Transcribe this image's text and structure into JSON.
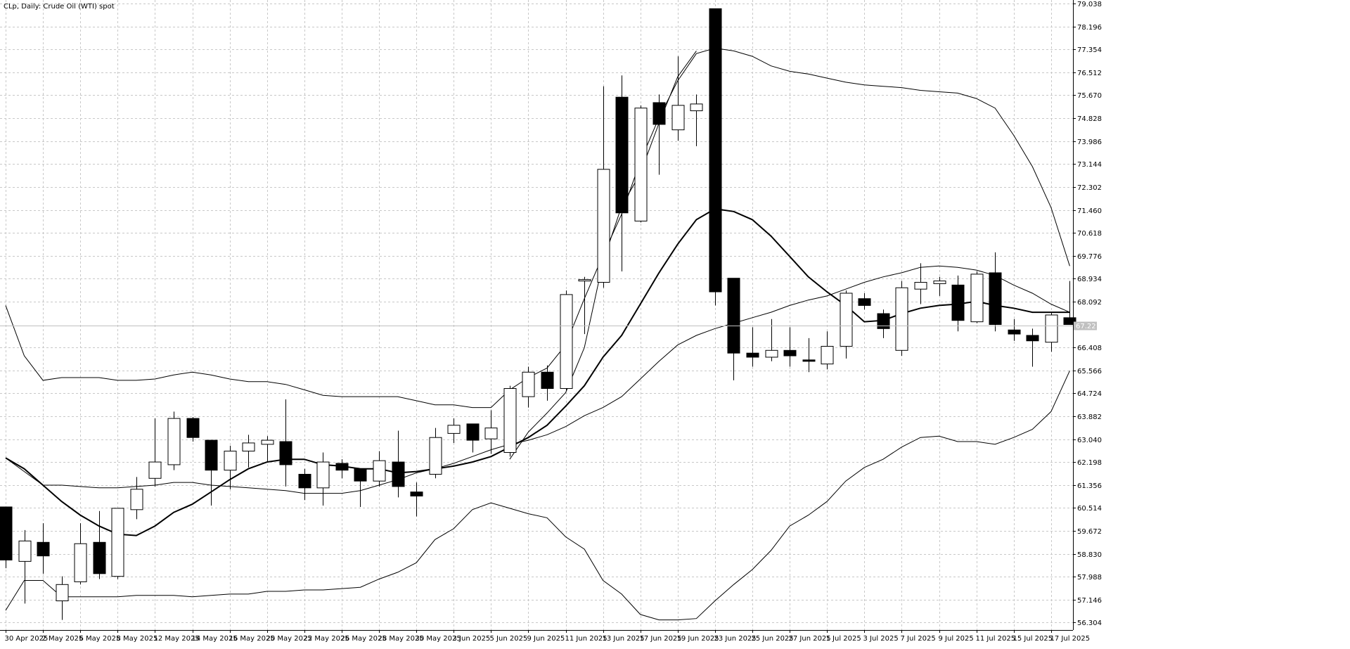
{
  "header": {
    "symbol_title": "CLp, Daily:  Crude Oil (WTI) spot"
  },
  "price_tag": {
    "label": "67.22"
  },
  "colors": {
    "background": "#ffffff",
    "grid": "#c8c8c8",
    "bull_body": "#ffffff",
    "bear_body": "#000000",
    "band_line": "#000000",
    "price_tag_bg": "#c0c0c0"
  },
  "chart_data": {
    "type": "candlestick",
    "title": "CLp, Daily:  Crude Oil (WTI) spot",
    "ylim": [
      55.9,
      79.04
    ],
    "y_ticks": [
      79.038,
      78.196,
      77.354,
      76.512,
      75.67,
      74.828,
      73.986,
      73.144,
      72.302,
      71.46,
      70.618,
      69.776,
      68.934,
      68.092,
      66.408,
      65.566,
      64.724,
      63.882,
      63.04,
      62.198,
      61.356,
      60.514,
      59.672,
      58.83,
      57.988,
      57.146,
      56.304
    ],
    "y_tick_labels": [
      "79.038",
      "78.196",
      "77.354",
      "76.512",
      "75.670",
      "74.828",
      "73.986",
      "73.144",
      "72.302",
      "71.460",
      "70.618",
      "69.776",
      "68.934",
      "68.092",
      "66.408",
      "65.566",
      "64.724",
      "63.882",
      "63.040",
      "62.198",
      "61.356",
      "60.514",
      "59.672",
      "58.830",
      "57.988",
      "57.146",
      "56.304"
    ],
    "x_tick_labels": [
      {
        "i": 0,
        "label": "30 Apr 2025"
      },
      {
        "i": 2,
        "label": "2 May 2025"
      },
      {
        "i": 4,
        "label": "6 May 2025"
      },
      {
        "i": 6,
        "label": "8 May 2025"
      },
      {
        "i": 8,
        "label": "12 May 2025"
      },
      {
        "i": 10,
        "label": "14 May 2025"
      },
      {
        "i": 12,
        "label": "16 May 2025"
      },
      {
        "i": 14,
        "label": "20 May 2025"
      },
      {
        "i": 16,
        "label": "22 May 2025"
      },
      {
        "i": 18,
        "label": "26 May 2025"
      },
      {
        "i": 20,
        "label": "28 May 2025"
      },
      {
        "i": 22,
        "label": "30 May 2025"
      },
      {
        "i": 24,
        "label": "3 Jun 2025"
      },
      {
        "i": 26,
        "label": "5 Jun 2025"
      },
      {
        "i": 28,
        "label": "9 Jun 2025"
      },
      {
        "i": 30,
        "label": "11 Jun 2025"
      },
      {
        "i": 32,
        "label": "13 Jun 2025"
      },
      {
        "i": 34,
        "label": "17 Jun 2025"
      },
      {
        "i": 36,
        "label": "19 Jun 2025"
      },
      {
        "i": 38,
        "label": "23 Jun 2025"
      },
      {
        "i": 40,
        "label": "25 Jun 2025"
      },
      {
        "i": 42,
        "label": "27 Jun 2025"
      },
      {
        "i": 44,
        "label": "1 Jul 2025"
      },
      {
        "i": 46,
        "label": "3 Jul 2025"
      },
      {
        "i": 48,
        "label": "7 Jul 2025"
      },
      {
        "i": 50,
        "label": "9 Jul 2025"
      },
      {
        "i": 52,
        "label": "11 Jul 2025"
      },
      {
        "i": 54,
        "label": "15 Jul 2025"
      },
      {
        "i": 56,
        "label": "17 Jul 2025"
      }
    ],
    "ohlc": [
      {
        "o": 60.55,
        "h": 60.55,
        "l": 58.3,
        "c": 58.6
      },
      {
        "o": 58.55,
        "h": 59.7,
        "l": 57.0,
        "c": 59.3
      },
      {
        "o": 59.25,
        "h": 59.95,
        "l": 58.1,
        "c": 58.75
      },
      {
        "o": 57.1,
        "h": 58.0,
        "l": 56.4,
        "c": 57.7
      },
      {
        "o": 57.8,
        "h": 59.95,
        "l": 57.7,
        "c": 59.2
      },
      {
        "o": 59.25,
        "h": 60.4,
        "l": 57.9,
        "c": 58.1
      },
      {
        "o": 58.0,
        "h": 60.5,
        "l": 57.9,
        "c": 60.5
      },
      {
        "o": 60.45,
        "h": 61.65,
        "l": 60.1,
        "c": 61.2
      },
      {
        "o": 61.6,
        "h": 63.8,
        "l": 61.3,
        "c": 62.2
      },
      {
        "o": 62.1,
        "h": 64.05,
        "l": 61.9,
        "c": 63.8
      },
      {
        "o": 63.8,
        "h": 63.85,
        "l": 62.95,
        "c": 63.1
      },
      {
        "o": 63.0,
        "h": 63.0,
        "l": 60.6,
        "c": 61.9
      },
      {
        "o": 61.9,
        "h": 62.8,
        "l": 61.2,
        "c": 62.6
      },
      {
        "o": 62.6,
        "h": 63.2,
        "l": 62.0,
        "c": 62.9
      },
      {
        "o": 62.85,
        "h": 63.15,
        "l": 62.2,
        "c": 63.0
      },
      {
        "o": 62.95,
        "h": 64.5,
        "l": 61.3,
        "c": 62.1
      },
      {
        "o": 61.75,
        "h": 61.95,
        "l": 60.8,
        "c": 61.25
      },
      {
        "o": 61.25,
        "h": 62.55,
        "l": 60.6,
        "c": 62.2
      },
      {
        "o": 62.15,
        "h": 62.3,
        "l": 61.6,
        "c": 61.9
      },
      {
        "o": 61.95,
        "h": 61.95,
        "l": 60.55,
        "c": 61.5
      },
      {
        "o": 61.5,
        "h": 62.6,
        "l": 61.3,
        "c": 62.25
      },
      {
        "o": 62.2,
        "h": 63.35,
        "l": 60.9,
        "c": 61.3
      },
      {
        "o": 61.1,
        "h": 61.45,
        "l": 60.2,
        "c": 60.95
      },
      {
        "o": 61.75,
        "h": 63.45,
        "l": 61.6,
        "c": 63.1
      },
      {
        "o": 63.25,
        "h": 63.8,
        "l": 62.9,
        "c": 63.55
      },
      {
        "o": 63.6,
        "h": 63.6,
        "l": 62.55,
        "c": 63.0
      },
      {
        "o": 63.05,
        "h": 64.1,
        "l": 62.5,
        "c": 63.45
      },
      {
        "o": 62.55,
        "h": 65.0,
        "l": 62.4,
        "c": 64.9
      },
      {
        "o": 64.6,
        "h": 65.7,
        "l": 64.2,
        "c": 65.5
      },
      {
        "o": 65.5,
        "h": 65.75,
        "l": 64.45,
        "c": 64.9
      },
      {
        "o": 64.9,
        "h": 68.5,
        "l": 64.8,
        "c": 68.35
      },
      {
        "o": 68.9,
        "h": 69.0,
        "l": 66.9,
        "c": 68.9
      },
      {
        "o": 68.8,
        "h": 76.0,
        "l": 68.6,
        "c": 72.95
      },
      {
        "o": 75.6,
        "h": 76.4,
        "l": 69.2,
        "c": 71.35
      },
      {
        "o": 71.05,
        "h": 75.3,
        "l": 71.0,
        "c": 75.2
      },
      {
        "o": 75.4,
        "h": 75.7,
        "l": 72.75,
        "c": 74.6
      },
      {
        "o": 74.4,
        "h": 77.1,
        "l": 74.0,
        "c": 75.3
      },
      {
        "o": 75.1,
        "h": 75.7,
        "l": 73.8,
        "c": 75.35
      },
      {
        "o": 78.85,
        "h": 78.85,
        "l": 67.95,
        "c": 68.45
      },
      {
        "o": 68.95,
        "h": 68.95,
        "l": 65.2,
        "c": 66.2
      },
      {
        "o": 66.2,
        "h": 67.15,
        "l": 65.7,
        "c": 66.05
      },
      {
        "o": 66.05,
        "h": 67.45,
        "l": 65.9,
        "c": 66.3
      },
      {
        "o": 66.3,
        "h": 67.15,
        "l": 65.7,
        "c": 66.1
      },
      {
        "o": 65.95,
        "h": 66.75,
        "l": 65.5,
        "c": 65.9
      },
      {
        "o": 65.8,
        "h": 67.0,
        "l": 65.6,
        "c": 66.45
      },
      {
        "o": 66.45,
        "h": 68.5,
        "l": 66.0,
        "c": 68.4
      },
      {
        "o": 68.2,
        "h": 68.4,
        "l": 67.8,
        "c": 67.95
      },
      {
        "o": 67.65,
        "h": 67.8,
        "l": 66.75,
        "c": 67.1
      },
      {
        "o": 66.3,
        "h": 68.85,
        "l": 66.1,
        "c": 68.6
      },
      {
        "o": 68.55,
        "h": 69.5,
        "l": 68.0,
        "c": 68.8
      },
      {
        "o": 68.75,
        "h": 69.0,
        "l": 68.3,
        "c": 68.85
      },
      {
        "o": 68.7,
        "h": 69.05,
        "l": 67.0,
        "c": 67.4
      },
      {
        "o": 67.35,
        "h": 69.2,
        "l": 67.3,
        "c": 69.1
      },
      {
        "o": 69.15,
        "h": 69.9,
        "l": 67.0,
        "c": 67.25
      },
      {
        "o": 67.05,
        "h": 67.45,
        "l": 66.65,
        "c": 66.9
      },
      {
        "o": 66.85,
        "h": 67.1,
        "l": 65.7,
        "c": 66.65
      },
      {
        "o": 66.6,
        "h": 67.7,
        "l": 66.25,
        "c": 67.6
      },
      {
        "o": 67.5,
        "h": 68.85,
        "l": 67.25,
        "c": 67.25
      }
    ],
    "ma_middle": [
      62.35,
      61.95,
      61.35,
      60.75,
      60.25,
      59.85,
      59.55,
      59.5,
      59.85,
      60.35,
      60.65,
      61.1,
      61.55,
      61.95,
      62.2,
      62.3,
      62.3,
      62.1,
      62.05,
      61.95,
      61.95,
      61.8,
      61.85,
      61.95,
      62.05,
      62.2,
      62.4,
      62.75,
      63.1,
      63.55,
      64.25,
      65.0,
      66.05,
      66.85,
      68.0,
      69.15,
      70.2,
      71.1,
      71.5,
      71.4,
      71.1,
      70.5,
      69.75,
      69.0,
      68.45,
      67.95,
      67.35,
      67.4,
      67.65,
      67.85,
      67.95,
      68.0,
      68.1,
      67.95,
      67.85,
      67.7,
      67.7,
      67.7
    ],
    "band_upper": [
      67.95,
      66.1,
      65.2,
      65.3,
      65.3,
      65.3,
      65.2,
      65.2,
      65.25,
      65.4,
      65.5,
      65.4,
      65.25,
      65.15,
      65.15,
      65.05,
      64.85,
      64.65,
      64.6,
      64.6,
      64.6,
      64.6,
      64.45,
      64.3,
      64.3,
      64.2,
      64.2,
      64.85,
      65.3,
      65.65,
      66.5,
      68.2,
      69.8,
      71.3,
      73.25,
      74.85,
      76.2,
      77.2,
      77.4,
      77.3,
      77.1,
      76.75,
      76.55,
      76.45,
      76.3,
      76.15,
      76.05,
      76.0,
      75.95,
      75.85,
      75.8,
      75.75,
      75.55,
      75.2,
      74.2,
      73.05,
      71.55,
      69.4
    ],
    "band_lower": [
      56.75,
      57.85,
      57.85,
      57.25,
      57.25,
      57.25,
      57.25,
      57.3,
      57.3,
      57.3,
      57.25,
      57.3,
      57.35,
      57.35,
      57.45,
      57.45,
      57.5,
      57.5,
      57.55,
      57.6,
      57.9,
      58.15,
      58.5,
      59.35,
      59.75,
      60.45,
      60.7,
      60.5,
      60.3,
      60.15,
      59.45,
      59.0,
      57.85,
      57.35,
      56.6,
      56.4,
      56.4,
      56.45,
      57.1,
      57.7,
      58.25,
      58.95,
      59.85,
      60.25,
      60.75,
      61.5,
      62.0,
      62.3,
      62.75,
      63.1,
      63.15,
      62.95,
      62.95,
      62.85,
      63.1,
      63.4,
      64.05,
      65.55
    ],
    "band_inner_upper": [
      62.35,
      61.85,
      61.35,
      61.35,
      61.3,
      61.25,
      61.25,
      61.3,
      61.35,
      61.45,
      61.45,
      61.35,
      61.3,
      61.25,
      61.2,
      61.15,
      61.05,
      61.05,
      61.05,
      61.15,
      61.35,
      61.55,
      61.8,
      61.95,
      62.15,
      62.4,
      62.65,
      62.85,
      63.0,
      63.2,
      63.5,
      63.9,
      64.2,
      64.6,
      65.25,
      65.9,
      66.5,
      66.85,
      67.1,
      67.3,
      67.5,
      67.7,
      67.95,
      68.15,
      68.3,
      68.55,
      68.8,
      69.0,
      69.15,
      69.35,
      69.4,
      69.35,
      69.25,
      69.05,
      68.7,
      68.4,
      68.0,
      67.7
    ],
    "band_inner_lower": [
      null,
      null,
      null,
      null,
      null,
      null,
      null,
      null,
      null,
      null,
      null,
      null,
      null,
      null,
      null,
      null,
      null,
      null,
      null,
      null,
      null,
      null,
      null,
      null,
      null,
      null,
      null,
      62.3,
      63.3,
      64.0,
      64.75,
      66.4,
      69.55,
      71.6,
      72.8,
      74.65,
      76.35,
      77.3,
      null,
      null,
      null,
      null,
      null,
      null,
      null,
      null,
      null,
      null,
      null,
      null,
      null,
      null,
      null,
      null,
      null,
      null,
      null,
      null
    ],
    "last_price": 67.22,
    "grid": true
  }
}
